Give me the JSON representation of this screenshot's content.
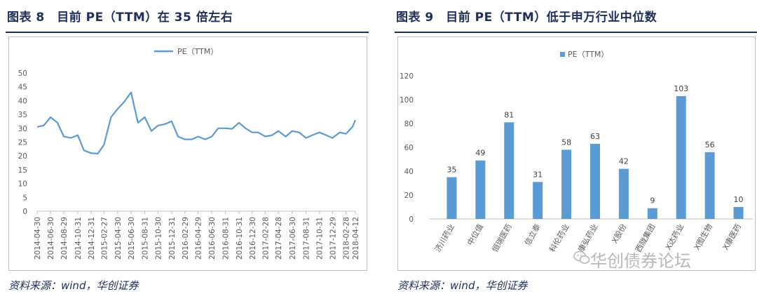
{
  "left_panel": {
    "caption": "图表 8　目前 PE（TTM）在 35 倍左右",
    "source": "资料来源：wind，华创证券"
  },
  "right_panel": {
    "caption": "图表 9　目前 PE（TTM）低于申万行业中位数",
    "source": "资料来源：wind，华创证券"
  },
  "watermark": "华创债券论坛",
  "colors": {
    "series": "#5b9bd5",
    "axis": "#bfbfbf",
    "heading": "#1f2d5a"
  },
  "chart_data": [
    {
      "type": "line",
      "title": "",
      "legend": [
        "PE（TTM）"
      ],
      "legend_position": "top-center",
      "ylim": [
        0,
        50
      ],
      "yticks": [
        0,
        5,
        10,
        15,
        20,
        25,
        30,
        35,
        40,
        45,
        50
      ],
      "xtick_labels": [
        "2014-04-30",
        "2014-06-30",
        "2014-08-29",
        "2014-10-31",
        "2014-12-31",
        "2015-02-27",
        "2015-04-30",
        "2015-06-30",
        "2015-08-31",
        "2015-10-30",
        "2015-12-31",
        "2016-02-29",
        "2016-04-29",
        "2016-06-30",
        "2016-08-31",
        "2016-10-31",
        "2016-12-30",
        "2017-02-28",
        "2017-04-28",
        "2017-06-30",
        "2017-08-31",
        "2017-10-31",
        "2017-12-29",
        "2018-02-28",
        "2018-04-12"
      ],
      "series": [
        {
          "name": "PE（TTM）",
          "x": [
            "2014-04-30",
            "2014-05-30",
            "2014-06-30",
            "2014-07-31",
            "2014-08-29",
            "2014-09-30",
            "2014-10-31",
            "2014-11-28",
            "2014-12-31",
            "2015-01-30",
            "2015-02-27",
            "2015-03-31",
            "2015-04-30",
            "2015-05-29",
            "2015-06-30",
            "2015-07-31",
            "2015-08-31",
            "2015-09-30",
            "2015-10-30",
            "2015-11-30",
            "2015-12-31",
            "2016-01-29",
            "2016-02-29",
            "2016-03-31",
            "2016-04-29",
            "2016-05-31",
            "2016-06-30",
            "2016-07-29",
            "2016-08-31",
            "2016-09-30",
            "2016-10-31",
            "2016-11-30",
            "2016-12-30",
            "2017-01-26",
            "2017-02-28",
            "2017-03-31",
            "2017-04-28",
            "2017-05-31",
            "2017-06-30",
            "2017-07-31",
            "2017-08-31",
            "2017-09-29",
            "2017-10-31",
            "2017-11-30",
            "2017-12-29",
            "2018-01-31",
            "2018-02-28",
            "2018-03-30",
            "2018-04-12"
          ],
          "values": [
            30.5,
            31,
            34,
            32,
            27,
            26.5,
            27.5,
            22,
            21,
            20.8,
            24,
            34,
            37,
            39.5,
            43,
            32,
            34,
            29,
            31,
            31.5,
            32.5,
            27,
            26,
            26,
            27,
            26,
            27,
            30,
            30,
            29.8,
            32,
            30,
            28.5,
            28.5,
            27,
            27.5,
            29,
            27,
            29,
            28.5,
            26.5,
            27.5,
            28.5,
            27.5,
            26.5,
            28.5,
            28,
            30.5,
            33
          ]
        }
      ],
      "grid": false
    },
    {
      "type": "bar",
      "title": "",
      "legend": [
        "PE（TTM）"
      ],
      "legend_position": "top-center",
      "ylim": [
        0,
        120
      ],
      "yticks": [
        0,
        20,
        40,
        60,
        80,
        100,
        120
      ],
      "categories": [
        "济川药业",
        "中位值",
        "恒瑞医药",
        "信立泰",
        "科伦药业",
        "康弘药业",
        "X股份",
        "西陇集团",
        "X达药业",
        "X图生物",
        "X康医药"
      ],
      "values": [
        35,
        49,
        81,
        31,
        58,
        63,
        42,
        9,
        103,
        56,
        10
      ],
      "data_labels": [
        "35",
        "49",
        "81",
        "31",
        "58",
        "63",
        "42",
        "9",
        "103",
        "56",
        "10"
      ],
      "grid": false
    }
  ]
}
